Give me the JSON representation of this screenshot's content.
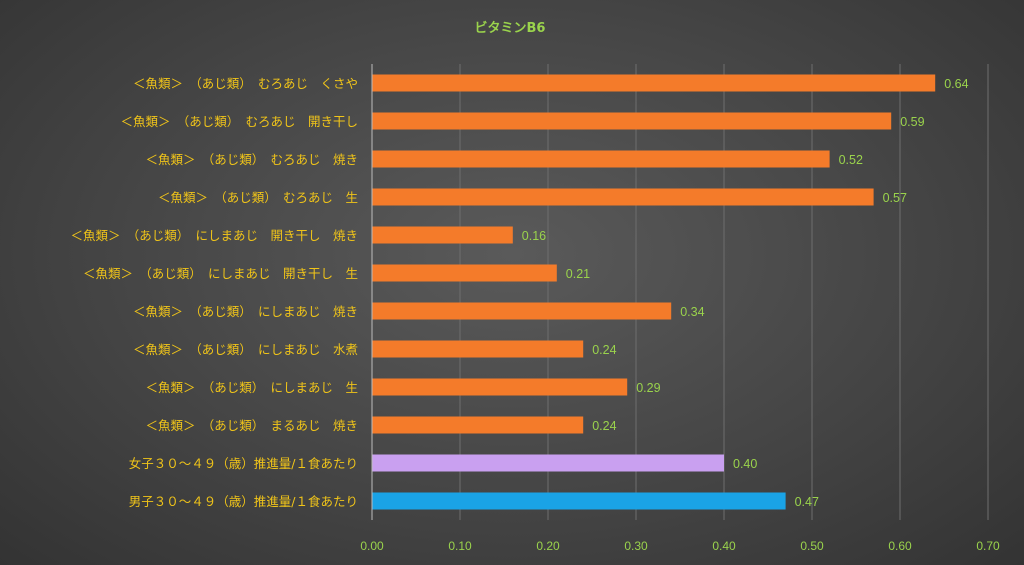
{
  "chart_data": {
    "type": "bar",
    "orientation": "horizontal",
    "title": "ビタミンB6",
    "xlim": [
      0,
      0.7
    ],
    "x_ticks": [
      "0.00",
      "0.10",
      "0.20",
      "0.30",
      "0.40",
      "0.50",
      "0.60",
      "0.70"
    ],
    "grid": true,
    "legend": "none",
    "categories": [
      "＜魚類＞　（あじ類）　むろあじ　くさや",
      "＜魚類＞　（あじ類）　むろあじ　開き干し",
      "＜魚類＞　（あじ類）　むろあじ　焼き",
      "＜魚類＞　（あじ類）　むろあじ　生",
      "＜魚類＞　（あじ類）　にしまあじ　開き干し　焼き",
      "＜魚類＞　（あじ類）　にしまあじ　開き干し　生",
      "＜魚類＞　（あじ類）　にしまあじ　焼き",
      "＜魚類＞　（あじ類）　にしまあじ　水煮",
      "＜魚類＞　（あじ類）　にしまあじ　生",
      "＜魚類＞　（あじ類）　まるあじ　焼き",
      "女子３０～４９（歳）推進量/１食あたり",
      "男子３０～４９（歳）推進量/１食あたり"
    ],
    "values": [
      0.64,
      0.59,
      0.52,
      0.57,
      0.16,
      0.21,
      0.34,
      0.24,
      0.29,
      0.24,
      0.4,
      0.47
    ],
    "value_labels": [
      "0.64",
      "0.59",
      "0.52",
      "0.57",
      "0.16",
      "0.21",
      "0.34",
      "0.24",
      "0.29",
      "0.24",
      "0.40",
      "0.47"
    ],
    "bar_colors": [
      "#f47b2a",
      "#f47b2a",
      "#f47b2a",
      "#f47b2a",
      "#f47b2a",
      "#f47b2a",
      "#f47b2a",
      "#f47b2a",
      "#f47b2a",
      "#f47b2a",
      "#c9a0f0",
      "#1aa3e6"
    ],
    "colors": {
      "title": "#9ad34c",
      "category_label": "#f0c419",
      "tick_label": "#9ad34c",
      "data_label": "#9ad34c",
      "gridline": "#6e6e6e",
      "axis": "#bdbdbd"
    }
  }
}
